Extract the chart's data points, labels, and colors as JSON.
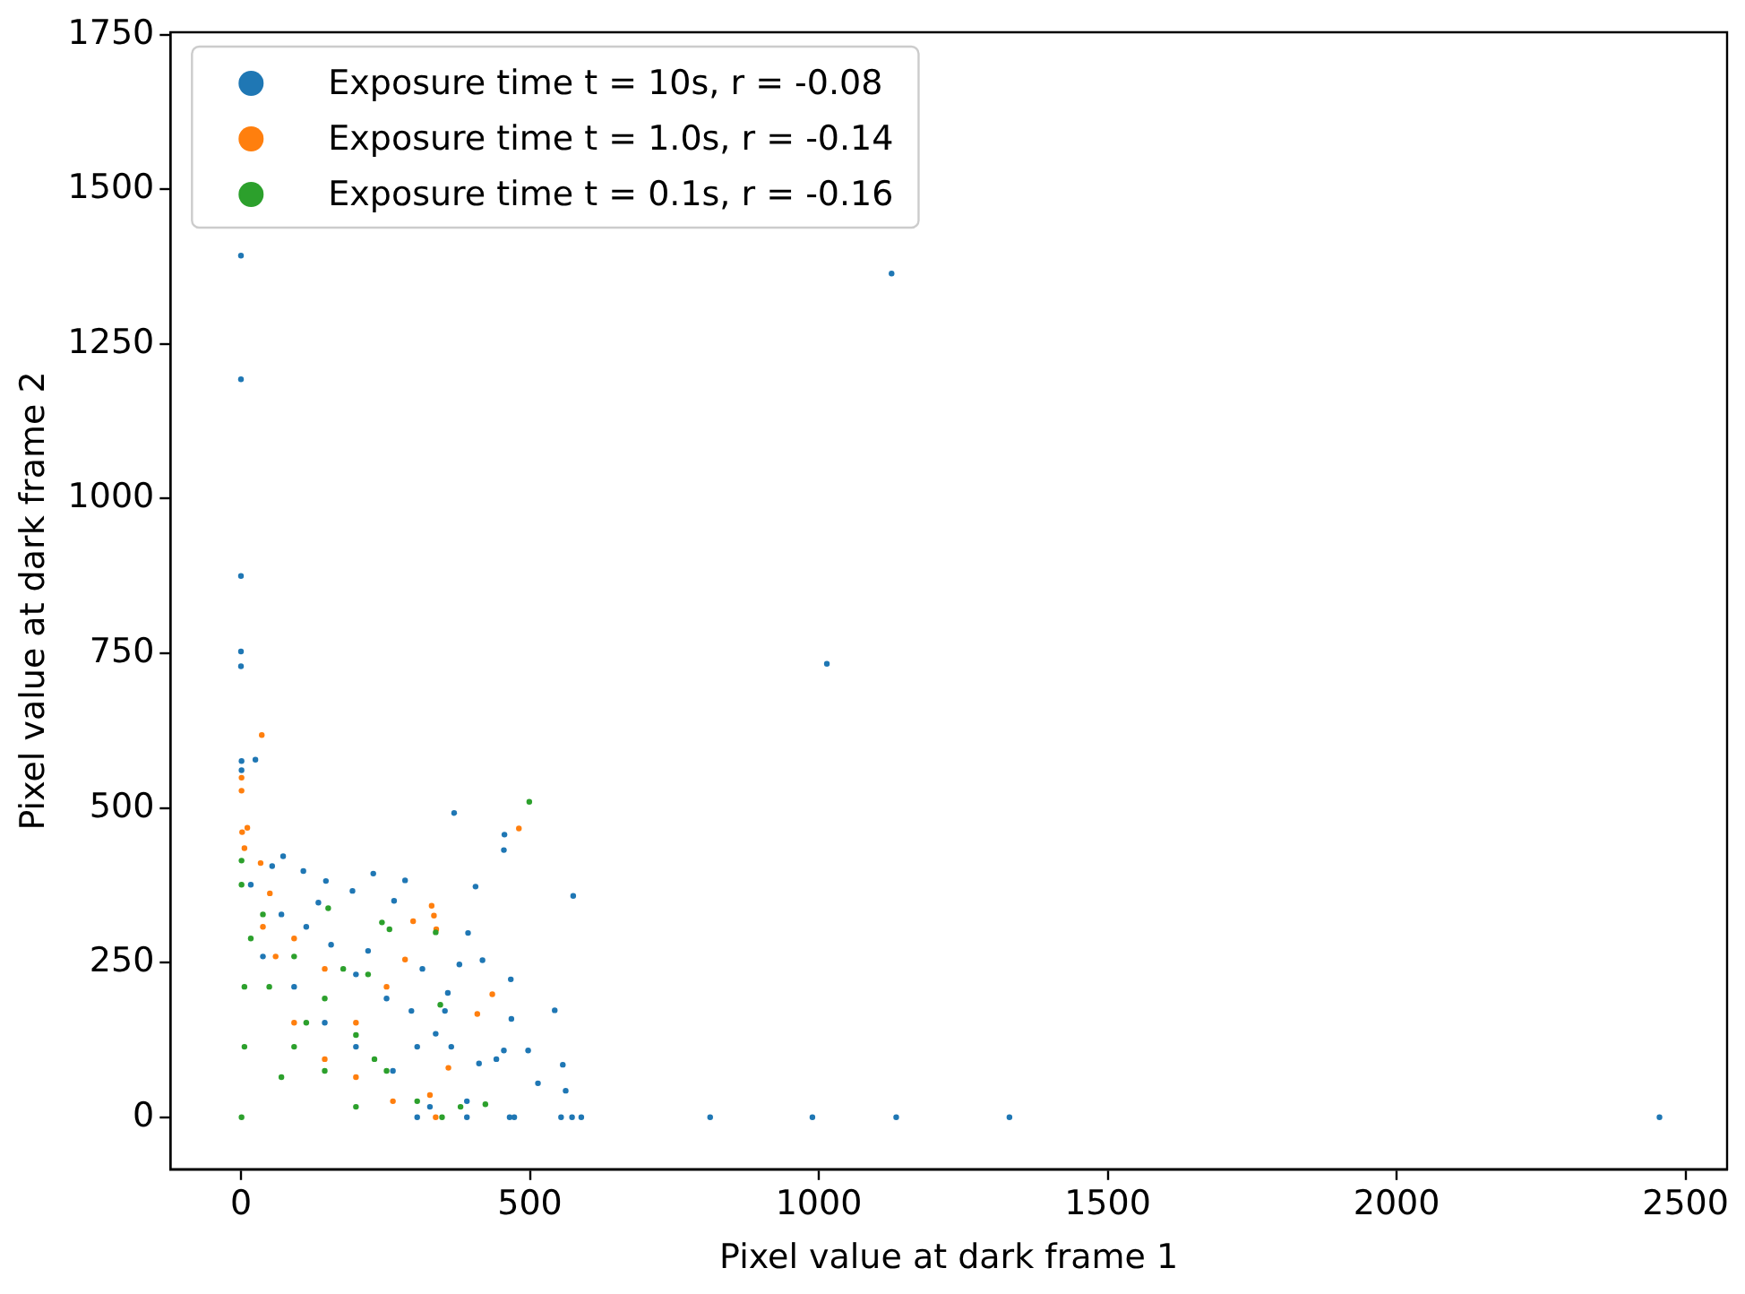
{
  "chart_data": {
    "type": "scatter",
    "xlabel": "Pixel value at dark frame 1",
    "ylabel": "Pixel value at dark frame 2",
    "xlim": [
      -122,
      2572
    ],
    "xticks": [
      0,
      500,
      1000,
      1500,
      2000,
      2500
    ],
    "ylim": [
      -84,
      1754
    ],
    "yticks": [
      0,
      250,
      500,
      750,
      1000,
      1250,
      1500,
      1750
    ],
    "grid": false,
    "legend": "top left",
    "marker": "circle",
    "series": [
      {
        "name": "Exposure time t = 10s, r = -0.08",
        "color": "#1f77b4",
        "x": [
          0,
          1126,
          0,
          0,
          0,
          0,
          1014,
          2455,
          1330,
          812,
          989,
          1134,
          554,
          573,
          589,
          473,
          1,
          25,
          1,
          369,
          456,
          455,
          575,
          406,
          73,
          108,
          147,
          229,
          284,
          193,
          265,
          393,
          418,
          467,
          543,
          468,
          497,
          557,
          514,
          562,
          442,
          412,
          455,
          364,
          337,
          353,
          314,
          378,
          358,
          295,
          252,
          199,
          156,
          113,
          70,
          54,
          134,
          220,
          305,
          391,
          327,
          465,
          391,
          199,
          263,
          145,
          92,
          38,
          17,
          305
        ],
        "values": [
          1393,
          1364,
          1193,
          875,
          753,
          729,
          733,
          0,
          0,
          0,
          0,
          0,
          0,
          0,
          0,
          0,
          576,
          578,
          561,
          492,
          457,
          432,
          358,
          373,
          422,
          398,
          382,
          394,
          383,
          366,
          350,
          298,
          254,
          223,
          173,
          159,
          108,
          85,
          55,
          43,
          94,
          87,
          108,
          114,
          135,
          172,
          240,
          247,
          201,
          172,
          192,
          231,
          279,
          308,
          328,
          406,
          347,
          269,
          114,
          26,
          17,
          0,
          0,
          114,
          75,
          153,
          211,
          260,
          376,
          0
        ]
      },
      {
        "name": "Exposure time t = 1.0s, r = -0.14",
        "color": "#ff7f0e",
        "x": [
          36,
          1,
          1,
          2,
          11,
          481,
          435,
          409,
          330,
          334,
          298,
          338,
          284,
          252,
          199,
          145,
          359,
          327,
          34,
          50,
          92,
          60,
          6,
          199,
          337,
          145,
          263,
          92,
          38
        ],
        "values": [
          618,
          549,
          528,
          461,
          468,
          467,
          199,
          167,
          342,
          326,
          317,
          304,
          255,
          211,
          153,
          240,
          80,
          36,
          411,
          362,
          289,
          260,
          435,
          65,
          0,
          94,
          26,
          153,
          308
        ]
      },
      {
        "name": "Exposure time t = 0.1s, r = -0.16",
        "color": "#2ca02c",
        "x": [
          499,
          337,
          345,
          244,
          257,
          151,
          380,
          423,
          305,
          252,
          199,
          145,
          92,
          38,
          1,
          1,
          17,
          92,
          199,
          348,
          1,
          49,
          145,
          6,
          6,
          70,
          113,
          231,
          177,
          220
        ],
        "values": [
          510,
          299,
          182,
          315,
          304,
          338,
          17,
          21,
          26,
          75,
          133,
          192,
          260,
          328,
          415,
          376,
          289,
          114,
          17,
          0,
          0,
          211,
          75,
          211,
          114,
          65,
          153,
          94,
          240,
          231
        ]
      }
    ]
  }
}
